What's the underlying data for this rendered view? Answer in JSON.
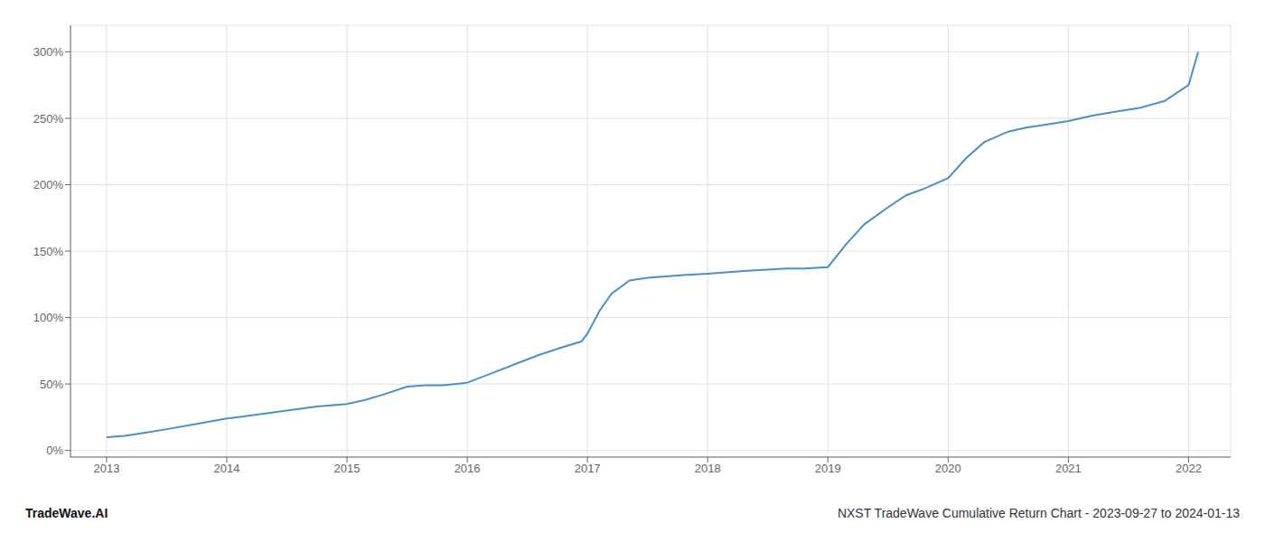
{
  "chart_data": {
    "type": "line",
    "title": "NXST TradeWave Cumulative Return Chart - 2023-09-27 to 2024-01-13",
    "annotations": [
      "TradeWave.AI"
    ],
    "color": "#4a90c4",
    "x": [
      2013.0,
      2013.15,
      2013.3,
      2013.5,
      2013.75,
      2014.0,
      2014.25,
      2014.5,
      2014.75,
      2015.0,
      2015.15,
      2015.3,
      2015.5,
      2015.65,
      2015.8,
      2016.0,
      2016.2,
      2016.4,
      2016.6,
      2016.8,
      2016.95,
      2017.0,
      2017.1,
      2017.2,
      2017.35,
      2017.5,
      2017.65,
      2017.8,
      2018.0,
      2018.15,
      2018.3,
      2018.5,
      2018.65,
      2018.8,
      2019.0,
      2019.15,
      2019.3,
      2019.5,
      2019.65,
      2019.8,
      2020.0,
      2020.15,
      2020.3,
      2020.5,
      2020.65,
      2020.8,
      2021.0,
      2021.2,
      2021.4,
      2021.6,
      2021.8,
      2022.0,
      2022.08
    ],
    "values": [
      10,
      11,
      13,
      16,
      20,
      24,
      27,
      30,
      33,
      35,
      38,
      42,
      48,
      49,
      49,
      51,
      58,
      65,
      72,
      78,
      82,
      88,
      105,
      118,
      128,
      130,
      131,
      132,
      133,
      134,
      135,
      136,
      137,
      137,
      138,
      155,
      170,
      183,
      192,
      197,
      205,
      220,
      232,
      240,
      243,
      245,
      248,
      252,
      255,
      258,
      263,
      275,
      300
    ],
    "xlim": [
      2012.7,
      2022.35
    ],
    "xticks": [
      2013,
      2014,
      2015,
      2016,
      2017,
      2018,
      2019,
      2020,
      2021,
      2022
    ],
    "ylim": [
      -5,
      320
    ],
    "yticks": [
      {
        "value": 0,
        "label": "0%"
      },
      {
        "value": 50,
        "label": "50%"
      },
      {
        "value": 100,
        "label": "100%"
      },
      {
        "value": 150,
        "label": "150%"
      },
      {
        "value": 200,
        "label": "200%"
      },
      {
        "value": 250,
        "label": "250%"
      },
      {
        "value": 300,
        "label": "300%"
      }
    ],
    "grid": true
  }
}
